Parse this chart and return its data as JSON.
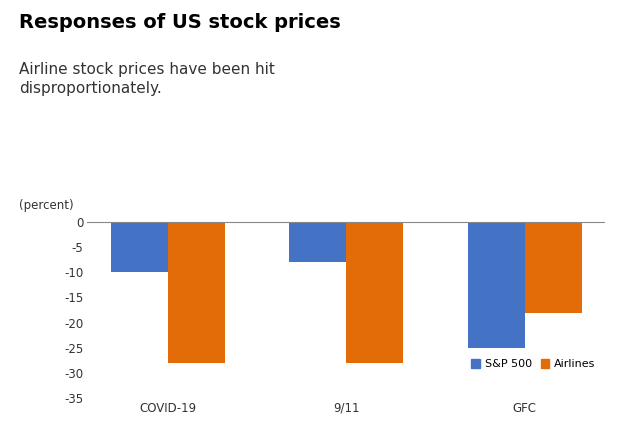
{
  "title": "Responses of US stock prices",
  "subtitle": "Airline stock prices have been hit\ndisproportionately.",
  "ylabel": "(percent)",
  "categories": [
    "COVID-19",
    "9/11",
    "GFC"
  ],
  "sp500_values": [
    -10,
    -8,
    -25
  ],
  "airlines_values": [
    -28,
    -28,
    -18
  ],
  "sp500_color": "#4472C4",
  "airlines_color": "#E36C09",
  "ylim": [
    -35,
    2
  ],
  "yticks": [
    0,
    -5,
    -10,
    -15,
    -20,
    -25,
    -30,
    -35
  ],
  "legend_sp500": "S&P 500",
  "legend_airlines": "Airlines",
  "background_color": "#ffffff",
  "bar_width": 0.32,
  "fig_width": 6.24,
  "fig_height": 4.42,
  "title_fontsize": 14,
  "subtitle_fontsize": 11,
  "ylabel_fontsize": 8.5,
  "tick_fontsize": 8.5,
  "legend_fontsize": 8
}
